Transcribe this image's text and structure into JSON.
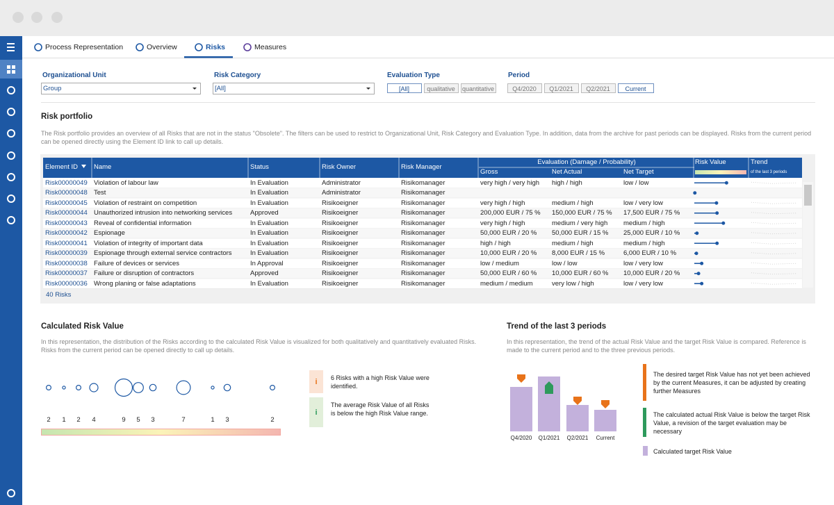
{
  "tabs": [
    "Process Representation",
    "Overview",
    "Risks",
    "Measures"
  ],
  "filters": {
    "org_unit": {
      "label": "Organizational Unit",
      "value": "Group"
    },
    "risk_category": {
      "label": "Risk Category",
      "value": "[All]"
    },
    "evaluation_type": {
      "label": "Evaluation Type",
      "options": [
        "[All]",
        "qualitative",
        "quantitative"
      ]
    },
    "period": {
      "label": "Period",
      "options": [
        "Q4/2020",
        "Q1/2021",
        "Q2/2021",
        "Current"
      ]
    }
  },
  "portfolio": {
    "title": "Risk portfolio",
    "description": "The Risk portfolio provides an overview of all Risks that are not in the status \"Obsolete\". The filters can be used to restrict to Organizational Unit, Risk Category and Evaluation Type. In addition, data from the archive for past periods can be displayed. Risks from the current period can be opened directly using the Element ID link to call up details.",
    "headers": {
      "id": "Element ID",
      "name": "Name",
      "status": "Status",
      "owner": "Risk Owner",
      "manager": "Risk Manager",
      "evaluation": "Evaluation (Damage / Probability)",
      "gross": "Gross",
      "net_actual": "Net Actual",
      "net_target": "Net Target",
      "risk_value": "Risk Value",
      "trend": "Trend",
      "trend_sub": "of the last 3 periods"
    },
    "risk_value_color": "#1d58a4",
    "rows": [
      {
        "id": "Risk00000049",
        "name": "Violation of labour law",
        "status": "In Evaluation",
        "owner": "Administrator",
        "manager": "Risikomanager",
        "gross": "very high / very high",
        "net_actual": "high / high",
        "net_target": "low / low",
        "risk_value": 61
      },
      {
        "id": "Risk00000048",
        "name": "Test",
        "status": "In Evaluation",
        "owner": "Administrator",
        "manager": "Risikomanager",
        "gross": null,
        "net_actual": null,
        "net_target": null,
        "risk_value": 1
      },
      {
        "id": "Risk00000045",
        "name": "Violation of restraint on competition",
        "status": "In Evaluation",
        "owner": "Risikoeigner",
        "manager": "Risikomanager",
        "gross": "very high / high",
        "net_actual": "medium / high",
        "net_target": "low / very low",
        "risk_value": 42
      },
      {
        "id": "Risk00000044",
        "name": "Unauthorized intrusion into networking services",
        "status": "Approved",
        "owner": "Risikoeigner",
        "manager": "Risikomanager",
        "gross": "200,000 EUR / 75 %",
        "net_actual": "150,000 EUR / 75 %",
        "net_target": "17,500 EUR / 75 %",
        "risk_value": 43
      },
      {
        "id": "Risk00000043",
        "name": "Reveal of confidential information",
        "status": "In Evaluation",
        "owner": "Risikoeigner",
        "manager": "Risikomanager",
        "gross": "very high / high",
        "net_actual": "medium / very high",
        "net_target": "medium / high",
        "risk_value": 55
      },
      {
        "id": "Risk00000042",
        "name": "Espionage",
        "status": "In Evaluation",
        "owner": "Risikoeigner",
        "manager": "Risikomanager",
        "gross": "50,000 EUR / 20 %",
        "net_actual": "50,000 EUR / 15 %",
        "net_target": "25,000 EUR / 10 %",
        "risk_value": 5
      },
      {
        "id": "Risk00000041",
        "name": "Violation of integrity of important data",
        "status": "In Evaluation",
        "owner": "Risikoeigner",
        "manager": "Risikomanager",
        "gross": "high / high",
        "net_actual": "medium / high",
        "net_target": "medium / high",
        "risk_value": 43
      },
      {
        "id": "Risk00000039",
        "name": "Espionage through external service contractors",
        "status": "In Evaluation",
        "owner": "Risikoeigner",
        "manager": "Risikomanager",
        "gross": "10,000 EUR / 20 %",
        "net_actual": "8,000 EUR / 15 %",
        "net_target": "6,000 EUR / 10 %",
        "risk_value": 4
      },
      {
        "id": "Risk00000038",
        "name": "Failure of devices or services",
        "status": "In Approval",
        "owner": "Risikoeigner",
        "manager": "Risikomanager",
        "gross": "low / medium",
        "net_actual": "low / low",
        "net_target": "low / very low",
        "risk_value": 14
      },
      {
        "id": "Risk00000037",
        "name": "Failure or disruption of contractors",
        "status": "Approved",
        "owner": "Risikoeigner",
        "manager": "Risikomanager",
        "gross": "50,000 EUR / 60 %",
        "net_actual": "10,000 EUR / 60 %",
        "net_target": "10,000 EUR / 20 %",
        "risk_value": 8
      },
      {
        "id": "Risk00000036",
        "name": "Wrong planing or false adaptations",
        "status": "In Evaluation",
        "owner": "Risikoeigner",
        "manager": "Risikomanager",
        "gross": "medium / medium",
        "net_actual": "very low / high",
        "net_target": "low / very low",
        "risk_value": 14
      }
    ],
    "count": "40 Risks"
  },
  "calculated": {
    "title": "Calculated Risk Value",
    "description": "In this representation, the distribution of the Risks according to the calculated Risk Value is visualized for both qualitatively and quantitatively evaluated Risks. Risks from the current period can be opened directly to call up details.",
    "bubble_color": "#1d58a4",
    "counts": [
      2,
      1,
      2,
      4,
      9,
      5,
      3,
      7,
      1,
      3,
      2
    ],
    "notes": [
      {
        "icon": "i",
        "text": "6 Risks with a high Risk Value were identified.",
        "color": "#e8731a",
        "background": "#fbe4d5"
      },
      {
        "icon": "i",
        "text": "The average Risk Value of all Risks is below the high Risk Value range.",
        "color": "#2e9a5c",
        "background": "#e2efda"
      }
    ]
  },
  "trend": {
    "title": "Trend of the last 3 periods",
    "description": "In this representation, the trend of the actual Risk Value and the target Risk Value is compared. Reference is made to the current period and to the three previous periods.",
    "categories": [
      "Q4/2020",
      "Q1/2021",
      "Q2/2021",
      "Current"
    ],
    "target_values": [
      64,
      79,
      38,
      31
    ],
    "actual_values": [
      76,
      66,
      44,
      39
    ],
    "target_color": "#c3b1dc",
    "above_color": "#e8731a",
    "below_color": "#2e9a5c",
    "notes": [
      {
        "text": "The desired target Risk Value has not yet been achieved by the current Measures, it can be adjusted by creating further Measures",
        "color": "#e8731a"
      },
      {
        "text": "The calculated actual Risk Value is below the target Risk Value, a revision of the target evaluation may be necessary",
        "color": "#2e9a5c"
      },
      {
        "text": "Calculated target Risk Value",
        "color": "#c3b1dc"
      }
    ]
  }
}
